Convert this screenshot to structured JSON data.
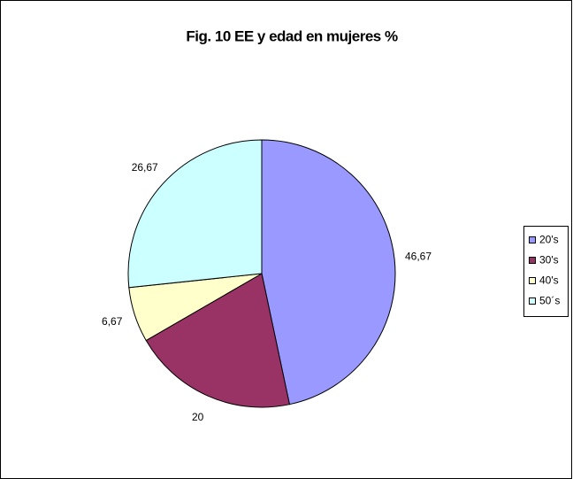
{
  "chart_data": {
    "type": "pie",
    "title": "Fig. 10  EE y edad en mujeres %",
    "categories": [
      "20's",
      "30's",
      "40's",
      "50´s"
    ],
    "values": [
      46.67,
      20,
      6.67,
      26.67
    ],
    "value_labels": [
      "46,67",
      "20",
      "6,67",
      "26,67"
    ],
    "colors": [
      "#9999ff",
      "#993366",
      "#ffffcc",
      "#ccffff"
    ],
    "legend": "right"
  }
}
